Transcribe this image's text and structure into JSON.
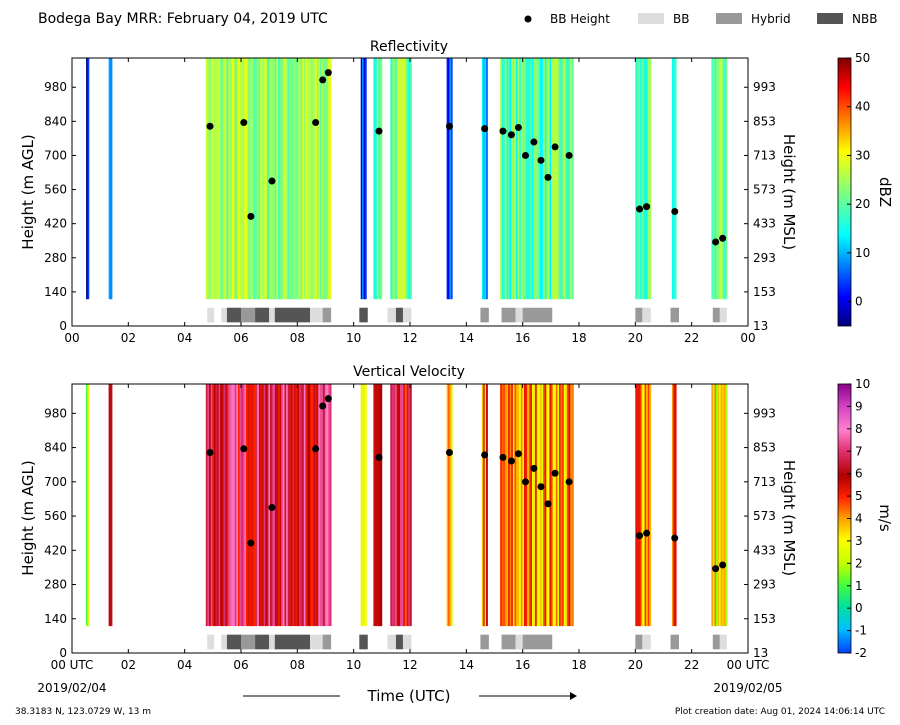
{
  "header": {
    "title": "Bodega Bay MRR:  February 04, 2019 UTC",
    "legend": [
      {
        "label": "BB Height",
        "kind": "dot",
        "color": "#000000"
      },
      {
        "label": "BB",
        "kind": "swatch",
        "color": "#dddddd"
      },
      {
        "label": "Hybrid",
        "kind": "swatch",
        "color": "#999999"
      },
      {
        "label": "NBB",
        "kind": "swatch",
        "color": "#555555"
      }
    ]
  },
  "footer": {
    "location": "38.3183 N, 123.0729 W, 13 m",
    "creation": "Plot creation date: Aug 01, 2024 14:06:14 UTC",
    "xlabel": "Time (UTC)",
    "date_start": "2019/02/04",
    "date_end": "2019/02/05"
  },
  "chart_data": [
    {
      "type": "heatmap",
      "title": "Reflectivity",
      "xlabel": "",
      "ylabel": "Height (m AGL)",
      "ylabel_right": "Height (m MSL)",
      "xlim": [
        0,
        24
      ],
      "ylim": [
        0,
        1100
      ],
      "x_ticks": [
        "00",
        "02",
        "04",
        "06",
        "08",
        "10",
        "12",
        "14",
        "16",
        "18",
        "20",
        "22",
        "00"
      ],
      "y_ticks": [
        0,
        140,
        280,
        420,
        560,
        700,
        840,
        980
      ],
      "y_ticks_right": [
        "13",
        "153",
        "293",
        "433",
        "573",
        "713",
        "853",
        "993"
      ],
      "colorbar": {
        "label": "dBZ",
        "min": -5,
        "max": 50,
        "ticks": [
          0,
          10,
          20,
          30,
          40,
          50
        ]
      }
    },
    {
      "type": "heatmap",
      "title": "Vertical Velocity",
      "xlabel": "",
      "ylabel": "Height (m AGL)",
      "ylabel_right": "Height (m MSL)",
      "xlim": [
        0,
        24
      ],
      "ylim": [
        0,
        1100
      ],
      "x_ticks": [
        "00 UTC",
        "02",
        "04",
        "06",
        "08",
        "10",
        "12",
        "14",
        "16",
        "18",
        "20",
        "22",
        "00 UTC"
      ],
      "y_ticks": [
        0,
        140,
        280,
        420,
        560,
        700,
        840,
        980
      ],
      "y_ticks_right": [
        "13",
        "153",
        "293",
        "433",
        "573",
        "713",
        "853",
        "993"
      ],
      "colorbar": {
        "label": "m/s",
        "min": -2,
        "max": 10,
        "ticks": [
          -2,
          -1,
          0,
          1,
          2,
          3,
          4,
          5,
          6,
          7,
          8,
          9,
          10
        ]
      }
    }
  ],
  "bb_height": {
    "x": [
      4.9,
      6.1,
      6.35,
      7.1,
      8.65,
      8.9,
      9.1,
      10.9,
      13.4,
      14.65,
      15.3,
      15.6,
      15.85,
      16.1,
      16.4,
      16.65,
      16.9,
      17.15,
      17.65,
      20.15,
      20.4,
      21.4,
      22.85,
      23.1
    ],
    "y": [
      820,
      835,
      450,
      595,
      835,
      1010,
      1040,
      800,
      820,
      810,
      800,
      785,
      815,
      700,
      755,
      680,
      610,
      735,
      700,
      480,
      490,
      470,
      345,
      360
    ]
  },
  "bb_type": [
    {
      "start": 4.8,
      "end": 5.05,
      "type": "BB"
    },
    {
      "start": 5.3,
      "end": 5.5,
      "type": "BB"
    },
    {
      "start": 5.5,
      "end": 6.0,
      "type": "NBB"
    },
    {
      "start": 6.0,
      "end": 6.5,
      "type": "Hybrid"
    },
    {
      "start": 6.5,
      "end": 7.0,
      "type": "NBB"
    },
    {
      "start": 7.0,
      "end": 7.2,
      "type": "BB"
    },
    {
      "start": 7.2,
      "end": 8.45,
      "type": "NBB"
    },
    {
      "start": 8.45,
      "end": 8.9,
      "type": "BB"
    },
    {
      "start": 8.9,
      "end": 9.2,
      "type": "Hybrid"
    },
    {
      "start": 10.2,
      "end": 10.5,
      "type": "NBB"
    },
    {
      "start": 11.2,
      "end": 11.5,
      "type": "BB"
    },
    {
      "start": 11.5,
      "end": 11.75,
      "type": "NBB"
    },
    {
      "start": 11.75,
      "end": 12.05,
      "type": "BB"
    },
    {
      "start": 14.5,
      "end": 14.8,
      "type": "Hybrid"
    },
    {
      "start": 15.25,
      "end": 15.75,
      "type": "Hybrid"
    },
    {
      "start": 15.75,
      "end": 16.0,
      "type": "BB"
    },
    {
      "start": 16.0,
      "end": 17.05,
      "type": "Hybrid"
    },
    {
      "start": 20.0,
      "end": 20.25,
      "type": "Hybrid"
    },
    {
      "start": 20.25,
      "end": 20.55,
      "type": "BB"
    },
    {
      "start": 21.25,
      "end": 21.55,
      "type": "Hybrid"
    },
    {
      "start": 22.75,
      "end": 23.0,
      "type": "Hybrid"
    },
    {
      "start": 23.0,
      "end": 23.25,
      "type": "BB"
    }
  ],
  "echo_segments": [
    {
      "start": 0.5,
      "end": 0.6,
      "top": 1100,
      "bottom": 110,
      "refl": -2,
      "vel": 2
    },
    {
      "start": 1.3,
      "end": 1.42,
      "top": 1100,
      "bottom": 110,
      "refl": 12,
      "vel": 6
    },
    {
      "start": 4.75,
      "end": 9.2,
      "top": 1100,
      "bottom": 110,
      "refl": 24,
      "vel": 6.5
    },
    {
      "start": 10.25,
      "end": 10.45,
      "top": 1100,
      "bottom": 110,
      "refl": 5,
      "vel": 3
    },
    {
      "start": 10.7,
      "end": 11.0,
      "top": 1100,
      "bottom": 110,
      "refl": 20,
      "vel": 5.5
    },
    {
      "start": 11.3,
      "end": 12.05,
      "top": 1100,
      "bottom": 110,
      "refl": 22,
      "vel": 5.8
    },
    {
      "start": 13.3,
      "end": 13.5,
      "top": 1100,
      "bottom": 110,
      "refl": 8,
      "vel": 3
    },
    {
      "start": 14.55,
      "end": 14.75,
      "top": 1100,
      "bottom": 110,
      "refl": 10,
      "vel": 4.5
    },
    {
      "start": 15.2,
      "end": 17.8,
      "top": 1100,
      "bottom": 110,
      "refl": 20,
      "vel": 4
    },
    {
      "start": 20.0,
      "end": 20.55,
      "top": 1100,
      "bottom": 110,
      "refl": 18,
      "vel": 4.5
    },
    {
      "start": 21.3,
      "end": 21.45,
      "top": 1100,
      "bottom": 110,
      "refl": 12,
      "vel": 5
    },
    {
      "start": 22.7,
      "end": 23.25,
      "top": 1100,
      "bottom": 110,
      "refl": 22,
      "vel": 3
    }
  ],
  "colors": {
    "BB": "#dddddd",
    "Hybrid": "#999999",
    "NBB": "#555555",
    "dot": "#000000"
  }
}
